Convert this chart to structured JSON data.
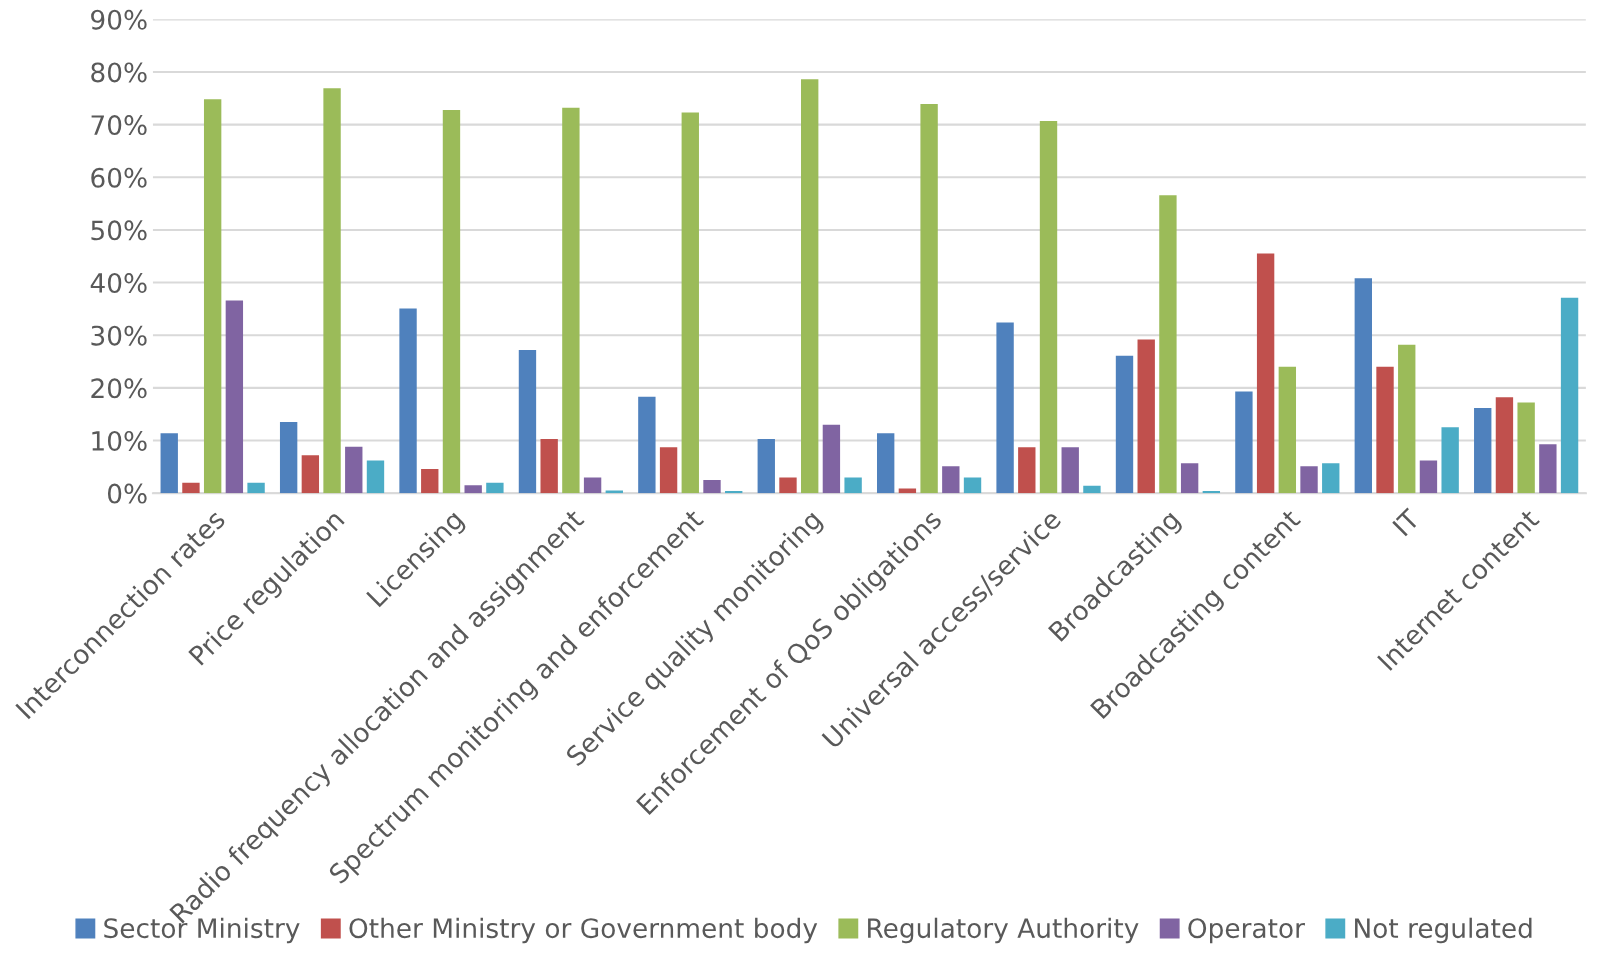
{
  "chart_data": {
    "type": "bar",
    "categories": [
      "Interconnection rates",
      "Price regulation",
      "Licensing",
      "Radio frequency allocation and assignment",
      "Spectrum monitoring and enforcement",
      "Service quality monitoring",
      "Enforcement of QoS obligations",
      "Universal access/service",
      "Broadcasting",
      "Broadcasting content",
      "IT",
      "Internet content"
    ],
    "series": [
      {
        "name": "Sector Ministry",
        "color": "#4f81bd",
        "values": [
          11.4,
          13.5,
          35.1,
          27.2,
          18.3,
          10.3,
          11.4,
          32.4,
          26.1,
          19.3,
          40.8,
          16.2
        ]
      },
      {
        "name": "Other Ministry or Government body",
        "color": "#c0504d",
        "values": [
          2.0,
          7.2,
          4.6,
          10.3,
          8.7,
          3.0,
          0.9,
          8.7,
          29.2,
          45.5,
          24.0,
          18.2
        ]
      },
      {
        "name": "Regulatory Authority",
        "color": "#9bbb59",
        "values": [
          74.8,
          76.9,
          72.8,
          73.2,
          72.3,
          78.6,
          73.9,
          70.7,
          56.6,
          24.0,
          28.2,
          17.2
        ]
      },
      {
        "name": "Operator",
        "color": "#8064a2",
        "values": [
          36.6,
          8.8,
          1.5,
          3.0,
          2.5,
          13.0,
          5.1,
          8.7,
          5.7,
          5.1,
          6.2,
          9.3
        ]
      },
      {
        "name": "Not regulated",
        "color": "#4bacc6",
        "values": [
          2.0,
          6.2,
          2.0,
          0.5,
          0.4,
          3.0,
          3.0,
          1.4,
          0.4,
          5.7,
          12.5,
          37.1
        ]
      }
    ],
    "ylim": [
      0,
      90
    ],
    "yticks": [
      {
        "value": 0,
        "label": "0%"
      },
      {
        "value": 10,
        "label": "10%"
      },
      {
        "value": 20,
        "label": "20%"
      },
      {
        "value": 30,
        "label": "30%"
      },
      {
        "value": 40,
        "label": "40%"
      },
      {
        "value": 50,
        "label": "50%"
      },
      {
        "value": 60,
        "label": "60%"
      },
      {
        "value": 70,
        "label": "70%"
      },
      {
        "value": 80,
        "label": "80%"
      },
      {
        "value": 90,
        "label": "90%"
      }
    ],
    "grid": "y",
    "legend": "bottom"
  }
}
